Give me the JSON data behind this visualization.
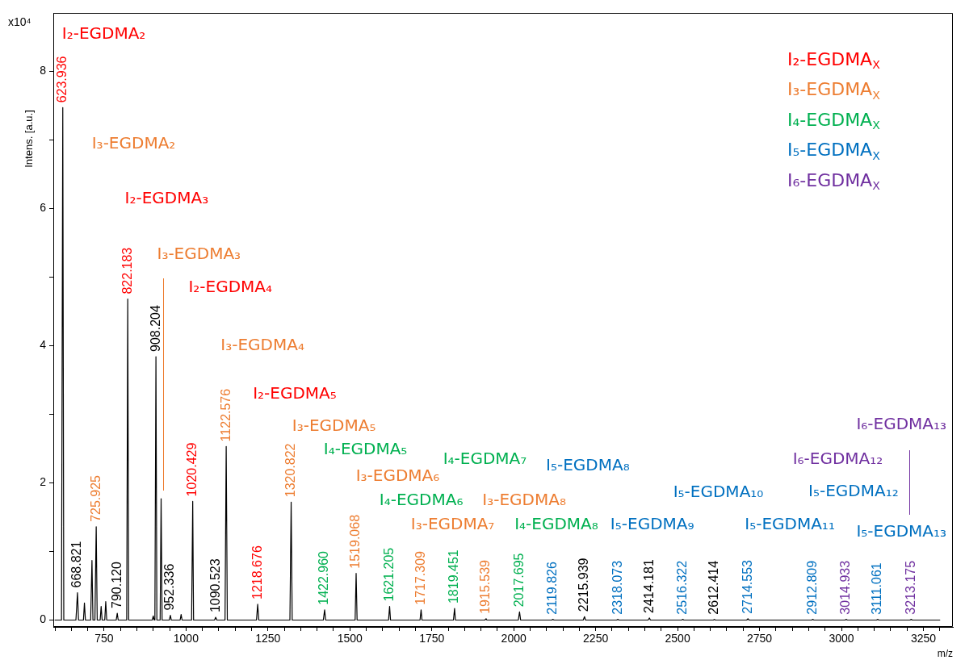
{
  "chart_data": {
    "type": "line",
    "xlabel": "m/z",
    "ylabel": "Intens. [a.u.]",
    "marker": "none",
    "color": "#000000",
    "xlim": [
      595,
      3340
    ],
    "xticks": [
      {
        "value": 600,
        "label": null
      },
      {
        "value": 650,
        "label": null
      },
      {
        "value": 700,
        "label": null
      },
      750,
      {
        "value": 800,
        "label": null
      },
      {
        "value": 850,
        "label": null
      },
      {
        "value": 900,
        "label": null
      },
      {
        "value": 950,
        "label": null
      },
      1000,
      {
        "value": 1050,
        "label": null
      },
      {
        "value": 1100,
        "label": null
      },
      {
        "value": 1150,
        "label": null
      },
      {
        "value": 1200,
        "label": null
      },
      1250,
      {
        "value": 1300,
        "label": null
      },
      {
        "value": 1350,
        "label": null
      },
      {
        "value": 1400,
        "label": null
      },
      {
        "value": 1450,
        "label": null
      },
      1500,
      {
        "value": 1550,
        "label": null
      },
      {
        "value": 1600,
        "label": null
      },
      {
        "value": 1650,
        "label": null
      },
      {
        "value": 1700,
        "label": null
      },
      1750,
      {
        "value": 1800,
        "label": null
      },
      {
        "value": 1850,
        "label": null
      },
      {
        "value": 1900,
        "label": null
      },
      {
        "value": 1950,
        "label": null
      },
      2000,
      {
        "value": 2050,
        "label": null
      },
      {
        "value": 2100,
        "label": null
      },
      {
        "value": 2150,
        "label": null
      },
      {
        "value": 2200,
        "label": null
      },
      2250,
      {
        "value": 2300,
        "label": null
      },
      {
        "value": 2350,
        "label": null
      },
      {
        "value": 2400,
        "label": null
      },
      {
        "value": 2450,
        "label": null
      },
      2500,
      {
        "value": 2550,
        "label": null
      },
      {
        "value": 2600,
        "label": null
      },
      {
        "value": 2650,
        "label": null
      },
      {
        "value": 2700,
        "label": null
      },
      2750,
      {
        "value": 2800,
        "label": null
      },
      {
        "value": 2850,
        "label": null
      },
      {
        "value": 2900,
        "label": null
      },
      {
        "value": 2950,
        "label": null
      },
      3000,
      {
        "value": 3050,
        "label": null
      },
      {
        "value": 3100,
        "label": null
      },
      {
        "value": 3150,
        "label": null
      },
      {
        "value": 3200,
        "label": null
      },
      3250,
      {
        "value": 3300,
        "label": null
      }
    ],
    "ylim": [
      -0.1,
      8.85
    ],
    "yticks": [
      0,
      {
        "value": 1,
        "label": null
      },
      2,
      {
        "value": 3,
        "label": null
      },
      4,
      {
        "value": 5,
        "label": null
      },
      6,
      {
        "value": 7,
        "label": null
      },
      8
    ],
    "annotations": [
      "x10⁴",
      "I₂-EGDMA$_{X}$",
      "I₃-EGDMA$_{X}$",
      "I₄-EGDMA$_{X}$",
      "I₅-EGDMA$_{X}$",
      "I₆-EGDMA$_{X}$",
      "I₂-EGDMA₂",
      "I₂-EGDMA₃",
      "I₂-EGDMA₄",
      "I₂-EGDMA₅",
      "I₃-EGDMA₂",
      "I₃-EGDMA₃",
      "I₃-EGDMA₄",
      "I₃-EGDMA₅",
      "I₃-EGDMA₆",
      "I₃-EGDMA₇",
      "I₃-EGDMA₈",
      "I₄-EGDMA₅",
      "I₄-EGDMA₆",
      "I₄-EGDMA₇",
      "I₄-EGDMA₈",
      "I₅-EGDMA₈",
      "I₅-EGDMA₉",
      "I₅-EGDMA₁₀",
      "I₅-EGDMA₁₁",
      "I₅-EGDMA₁₂",
      "I₅-EGDMA₁₃",
      "I₆-EGDMA₁₂",
      "I₆-EGDMA₁₃",
      {
        "text": "623.936",
        "x": 623.936,
        "y": 7.47
      },
      {
        "text": "668.821",
        "x": 668.821,
        "y": 0.4
      },
      {
        "text": "725.925",
        "x": 725.925,
        "y": 1.36
      },
      {
        "text": "790.120",
        "x": 790.12,
        "y": 0.1
      },
      {
        "text": "822.183",
        "x": 822.183,
        "y": 4.68
      },
      {
        "text": "908.204",
        "x": 908.204,
        "y": 3.84
      },
      {
        "text": "952.336",
        "x": 952.336,
        "y": 0.07
      },
      {
        "text": "1020.429",
        "x": 1020.429,
        "y": 1.73
      },
      {
        "text": "1090.523",
        "x": 1090.523,
        "y": 0.04
      },
      {
        "text": "1122.576",
        "x": 1122.576,
        "y": 2.53
      },
      {
        "text": "1218.676",
        "x": 1218.676,
        "y": 0.23
      },
      {
        "text": "1320.822",
        "x": 1320.822,
        "y": 1.72
      },
      {
        "text": "1422.960",
        "x": 1422.96,
        "y": 0.15
      },
      {
        "text": "1519.068",
        "x": 1519.068,
        "y": 0.68
      },
      {
        "text": "1621.205",
        "x": 1621.205,
        "y": 0.2
      },
      {
        "text": "1717.309",
        "x": 1717.309,
        "y": 0.15
      },
      {
        "text": "1819.451",
        "x": 1819.451,
        "y": 0.17
      },
      {
        "text": "1915.539",
        "x": 1915.539,
        "y": 0.02
      },
      {
        "text": "2017.695",
        "x": 2017.695,
        "y": 0.12
      },
      {
        "text": "2119.826",
        "x": 2119.826,
        "y": 0.01
      },
      {
        "text": "2215.939",
        "x": 2215.939,
        "y": 0.05
      },
      {
        "text": "2318.073",
        "x": 2318.073,
        "y": 0.01
      },
      {
        "text": "2414.181",
        "x": 2414.181,
        "y": 0.03
      },
      {
        "text": "2516.322",
        "x": 2516.322,
        "y": 0.01
      },
      {
        "text": "2612.414",
        "x": 2612.414,
        "y": 0.01
      },
      {
        "text": "2714.553",
        "x": 2714.553,
        "y": 0.02
      },
      {
        "text": "2912.809",
        "x": 2912.809,
        "y": 0.01
      },
      {
        "text": "3014.933",
        "x": 3014.933,
        "y": 0.01
      },
      {
        "text": "3111.061",
        "x": 3111.061,
        "y": 0.01
      },
      {
        "text": "3213.175",
        "x": 3213.175,
        "y": 0.01
      }
    ],
    "x": [
      600,
      620,
      623.936,
      627,
      664,
      668.821,
      672,
      687,
      690,
      693,
      709,
      713,
      716,
      722,
      725.925,
      729,
      738,
      741,
      744,
      752,
      755,
      758,
      787,
      790.12,
      793,
      819,
      822.183,
      825,
      897,
      900,
      903,
      905,
      908.204,
      911,
      921,
      924,
      927,
      949,
      952.336,
      955,
      982,
      985,
      988,
      1017,
      1020.429,
      1023,
      1087,
      1090.523,
      1094,
      1119,
      1122.576,
      1126,
      1215,
      1218.676,
      1222,
      1317,
      1320.822,
      1324,
      1419,
      1422.96,
      1426,
      1516,
      1519.068,
      1522,
      1618,
      1621.205,
      1624,
      1714,
      1717.309,
      1720,
      1816,
      1819.451,
      1822,
      1912,
      1915.539,
      1918,
      2014,
      2017.695,
      2021,
      2116,
      2119.826,
      2123,
      2212,
      2215.939,
      2219,
      2314,
      2318.073,
      2321,
      2410,
      2414.181,
      2417,
      2512,
      2516.322,
      2519,
      2609,
      2612.414,
      2615,
      2711,
      2714.553,
      2718,
      2909,
      2912.809,
      2916,
      3011,
      3014.933,
      3018,
      3107,
      3111.061,
      3114,
      3209,
      3213.175,
      3216,
      3300
    ],
    "values": [
      0,
      0,
      7.47,
      0,
      0,
      0.4,
      0,
      0,
      0.25,
      0,
      0,
      0.87,
      0,
      0,
      1.36,
      0,
      0,
      0.2,
      0,
      0,
      0.27,
      0,
      0,
      0.1,
      0,
      0,
      4.68,
      0,
      0,
      0.06,
      0,
      0,
      3.84,
      0,
      0,
      1.77,
      0,
      0,
      0.07,
      0,
      0,
      0.08,
      0,
      0,
      1.73,
      0,
      0,
      0.04,
      0,
      0,
      2.53,
      0,
      0,
      0.23,
      0,
      0,
      1.72,
      0,
      0,
      0.15,
      0,
      0,
      0.68,
      0,
      0,
      0.2,
      0,
      0,
      0.15,
      0,
      0,
      0.17,
      0,
      0,
      0.02,
      0,
      0,
      0.12,
      0,
      0,
      0.01,
      0,
      0,
      0.05,
      0,
      0,
      0.01,
      0,
      0,
      0.03,
      0,
      0,
      0.01,
      0,
      0,
      0.01,
      0,
      0,
      0.02,
      0,
      0,
      0.01,
      0,
      0,
      0.01,
      0,
      0,
      0.01,
      0,
      0,
      0.01,
      0,
      0
    ]
  }
}
